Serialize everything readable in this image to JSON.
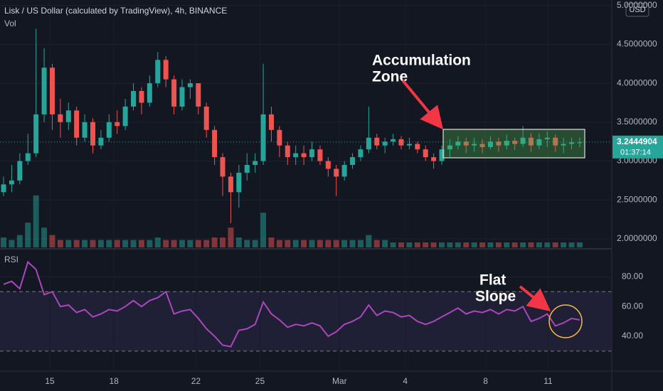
{
  "chart_data": [
    {
      "type": "candlestick",
      "title": "Lisk / US Dollar (calculated by TradingView), 4h, BINANCE",
      "currency": "USD",
      "last_price": 3.2444904,
      "countdown": "01:37:14",
      "annotations": [
        "Accumulation",
        "Zone"
      ],
      "up_color": "#26a69a",
      "down_color": "#ef5350",
      "x": [
        0,
        1,
        2,
        3,
        4,
        5,
        6,
        7,
        8,
        9,
        10,
        11,
        12,
        13,
        14,
        15,
        16,
        17,
        18,
        19,
        20,
        21,
        22,
        23,
        24,
        25,
        26,
        27,
        28,
        29,
        30,
        31,
        32,
        33,
        34,
        35,
        36,
        37,
        38,
        39,
        40,
        41,
        42,
        43,
        44,
        45,
        46,
        47,
        48,
        49,
        50,
        51,
        52,
        53,
        54,
        55,
        56,
        57,
        58,
        59,
        60,
        61,
        62,
        63,
        64,
        65,
        66,
        67,
        68,
        69,
        70,
        71
      ],
      "open": [
        2.6,
        2.7,
        2.75,
        3.0,
        3.1,
        3.6,
        4.2,
        3.6,
        3.5,
        3.65,
        3.3,
        3.5,
        3.2,
        3.3,
        3.5,
        3.45,
        3.7,
        3.9,
        3.75,
        4.0,
        4.3,
        4.05,
        3.7,
        3.95,
        4.0,
        3.7,
        3.4,
        3.05,
        2.8,
        2.6,
        2.85,
        2.95,
        3.0,
        3.6,
        3.4,
        3.2,
        3.05,
        3.1,
        3.05,
        3.15,
        3.0,
        2.9,
        2.8,
        2.95,
        3.05,
        3.15,
        3.3,
        3.2,
        3.25,
        3.28,
        3.2,
        3.22,
        3.15,
        3.05,
        3.0,
        3.15,
        3.2,
        3.25,
        3.2,
        3.22,
        3.18,
        3.25,
        3.2,
        3.26,
        3.22,
        3.3,
        3.2,
        3.28,
        3.3,
        3.2,
        3.22,
        3.24
      ],
      "high": [
        2.8,
        2.95,
        3.1,
        3.35,
        4.7,
        4.45,
        4.25,
        3.8,
        3.75,
        3.7,
        3.6,
        3.55,
        3.4,
        3.6,
        3.65,
        3.8,
        4.0,
        3.95,
        4.1,
        4.4,
        4.35,
        4.1,
        4.05,
        4.05,
        4.0,
        3.75,
        3.45,
        3.1,
        2.85,
        2.95,
        3.1,
        3.1,
        4.25,
        3.7,
        3.45,
        3.25,
        3.2,
        3.2,
        3.25,
        3.2,
        3.05,
        2.95,
        3.0,
        3.1,
        3.2,
        3.7,
        3.35,
        3.3,
        3.35,
        3.32,
        3.3,
        3.25,
        3.2,
        3.1,
        3.2,
        3.28,
        3.32,
        3.3,
        3.3,
        3.28,
        3.32,
        3.3,
        3.34,
        3.3,
        3.45,
        3.36,
        3.35,
        3.38,
        3.34,
        3.3,
        3.3,
        3.3
      ],
      "low": [
        2.55,
        2.6,
        2.7,
        2.95,
        3.05,
        3.5,
        3.4,
        3.3,
        3.4,
        3.2,
        3.25,
        3.1,
        3.15,
        3.25,
        3.35,
        3.4,
        3.65,
        3.6,
        3.7,
        3.95,
        3.95,
        3.6,
        3.65,
        3.8,
        3.6,
        3.3,
        2.95,
        2.55,
        2.2,
        2.4,
        2.75,
        2.85,
        2.95,
        3.25,
        3.05,
        2.95,
        2.95,
        2.95,
        3.0,
        2.95,
        2.8,
        2.55,
        2.75,
        2.9,
        3.0,
        3.1,
        3.15,
        3.1,
        3.2,
        3.15,
        3.15,
        3.1,
        3.0,
        2.9,
        2.95,
        3.05,
        3.15,
        3.1,
        3.12,
        3.1,
        3.15,
        3.12,
        3.15,
        3.14,
        3.18,
        3.12,
        3.15,
        3.18,
        3.12,
        3.1,
        3.15,
        3.18
      ],
      "close": [
        2.7,
        2.75,
        3.0,
        3.1,
        3.6,
        4.2,
        3.6,
        3.5,
        3.65,
        3.3,
        3.5,
        3.2,
        3.3,
        3.5,
        3.45,
        3.7,
        3.9,
        3.75,
        4.0,
        4.3,
        4.05,
        3.7,
        3.95,
        4.0,
        3.7,
        3.4,
        3.05,
        2.8,
        2.6,
        2.85,
        2.95,
        3.0,
        3.6,
        3.4,
        3.2,
        3.05,
        3.1,
        3.05,
        3.15,
        3.0,
        2.9,
        2.8,
        2.95,
        3.05,
        3.15,
        3.3,
        3.2,
        3.25,
        3.28,
        3.2,
        3.22,
        3.15,
        3.05,
        3.0,
        3.15,
        3.2,
        3.25,
        3.2,
        3.22,
        3.18,
        3.25,
        3.2,
        3.26,
        3.22,
        3.3,
        3.2,
        3.28,
        3.3,
        3.2,
        3.22,
        3.24,
        3.24
      ],
      "volume": {
        "name": "Vol",
        "ylim": [
          0,
          100
        ],
        "values": [
          4,
          3,
          5,
          10,
          21,
          8,
          5,
          3,
          3,
          3,
          3,
          3,
          3,
          3,
          3,
          3,
          3,
          3,
          3,
          4,
          3,
          3,
          3,
          3,
          3,
          3,
          4,
          4,
          8,
          4,
          3,
          3,
          14,
          4,
          3,
          3,
          3,
          3,
          3,
          3,
          3,
          3,
          3,
          3,
          3,
          5,
          3,
          3,
          2,
          2,
          2,
          2,
          2,
          2,
          2,
          2,
          2,
          2,
          2,
          2,
          2,
          2,
          2,
          2,
          2,
          2,
          2,
          2,
          2,
          2,
          2,
          2
        ]
      },
      "xlim": [
        -0.44,
        74.95
      ],
      "ylim": [
        1.89,
        5.07
      ],
      "yticks": [
        {
          "value": 2,
          "label": "2.0000000"
        },
        {
          "value": 2.5,
          "label": "2.5000000"
        },
        {
          "value": 3,
          "label": "3.0000000"
        },
        {
          "value": 3.5,
          "label": "3.5000000"
        },
        {
          "value": 4,
          "label": "4.0000000"
        },
        {
          "value": 4.5,
          "label": "4.5000000"
        },
        {
          "value": 5,
          "label": "5.0000000"
        }
      ]
    },
    {
      "type": "line",
      "title": "RSI",
      "annotations": [
        "Flat",
        "Slope"
      ],
      "color": "#ab47bc",
      "bands": [
        30,
        70
      ],
      "x": [
        0,
        1,
        2,
        3,
        4,
        5,
        6,
        7,
        8,
        9,
        10,
        11,
        12,
        13,
        14,
        15,
        16,
        17,
        18,
        19,
        20,
        21,
        22,
        23,
        24,
        25,
        26,
        27,
        28,
        29,
        30,
        31,
        32,
        33,
        34,
        35,
        36,
        37,
        38,
        39,
        40,
        41,
        42,
        43,
        44,
        45,
        46,
        47,
        48,
        49,
        50,
        51,
        52,
        53,
        54,
        55,
        56,
        57,
        58,
        59,
        60,
        61,
        62,
        63,
        64,
        65,
        66,
        67,
        68,
        69,
        70,
        71
      ],
      "values": [
        75,
        77,
        72,
        90,
        85,
        68,
        70,
        60,
        61,
        56,
        58,
        53,
        55,
        58,
        57,
        60,
        64,
        60,
        64,
        66,
        70,
        55,
        57,
        58,
        52,
        45,
        40,
        34,
        33,
        44,
        45,
        48,
        63,
        55,
        51,
        46,
        48,
        47,
        49,
        47,
        40,
        43,
        48,
        50,
        53,
        61,
        54,
        57,
        56,
        53,
        54,
        50,
        48,
        50,
        53,
        56,
        59,
        55,
        57,
        56,
        58,
        55,
        58,
        57,
        60,
        50,
        52,
        55,
        47,
        49,
        52,
        51
      ],
      "xlim": [
        -0.44,
        74.95
      ],
      "ylim": [
        17.5,
        97.9
      ],
      "yticks": [
        {
          "value": 40,
          "label": "40.00"
        },
        {
          "value": 60,
          "label": "60.00"
        },
        {
          "value": 80,
          "label": "80.00"
        }
      ],
      "xticks": [
        {
          "value": 5.7,
          "label": "15"
        },
        {
          "value": 13.6,
          "label": "18"
        },
        {
          "value": 23.7,
          "label": "22"
        },
        {
          "value": 31.6,
          "label": "25"
        },
        {
          "value": 41.4,
          "label": "Mar"
        },
        {
          "value": 49.5,
          "label": "4"
        },
        {
          "value": 59.4,
          "label": "8"
        },
        {
          "value": 67.1,
          "label": "11"
        }
      ]
    }
  ]
}
